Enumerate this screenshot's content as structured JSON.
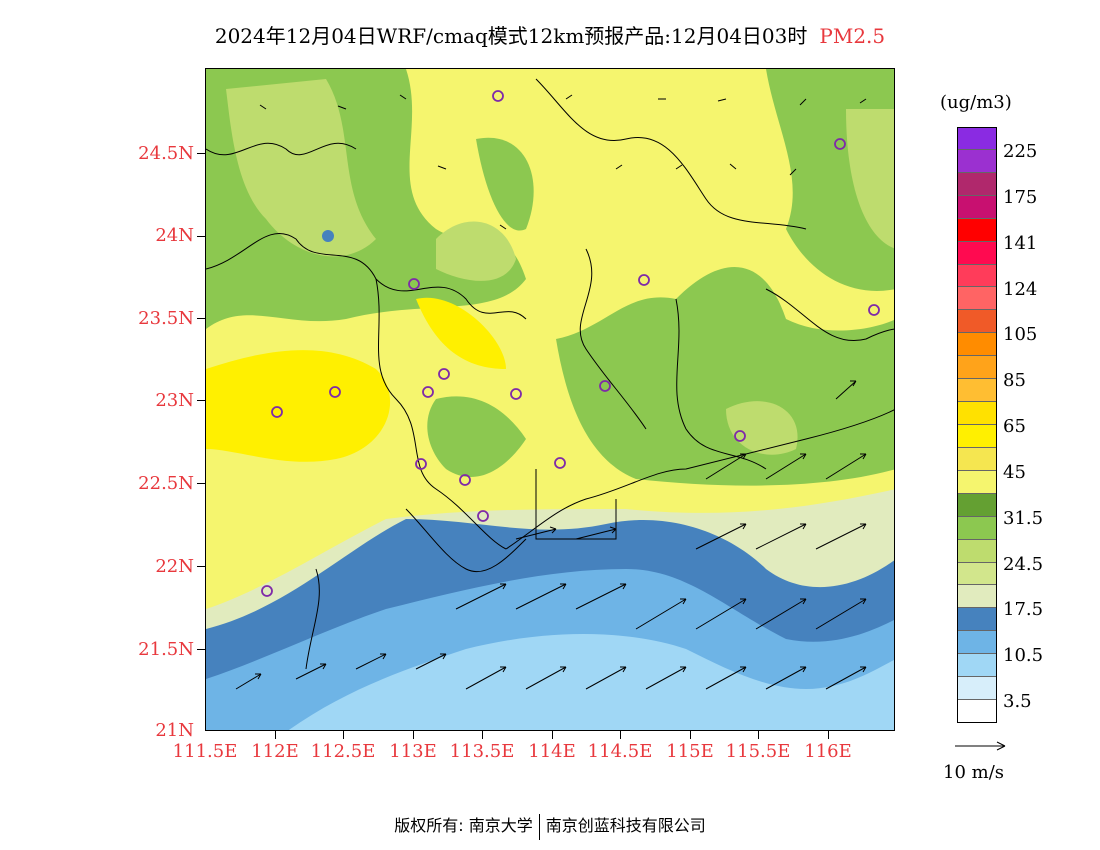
{
  "title": {
    "main": "2024年12月04日WRF/cmaq模式12km预报产品:12月04日03时",
    "species": "PM2.5"
  },
  "axes": {
    "lat_labels": [
      "24.5N",
      "24N",
      "23.5N",
      "23N",
      "22.5N",
      "22N",
      "21.5N",
      "21N"
    ],
    "lon_labels": [
      "111.5E",
      "112E",
      "112.5E",
      "113E",
      "113.5E",
      "114E",
      "114.5E",
      "115E",
      "115.5E",
      "116E"
    ]
  },
  "legend": {
    "unit": "(ug/m3)",
    "labels": [
      "225",
      "175",
      "141",
      "124",
      "105",
      "85",
      "65",
      "45",
      "31.5",
      "24.5",
      "17.5",
      "10.5",
      "3.5"
    ],
    "colors": [
      "#8a2be2",
      "#9b30d0",
      "#b0286c",
      "#c81070",
      "#ff0000",
      "#ff0a50",
      "#ff3c5a",
      "#ff6464",
      "#f05a28",
      "#ff8c00",
      "#ffa31a",
      "#ffbe32",
      "#ffe100",
      "#fff000",
      "#f5e650",
      "#f5f56e",
      "#64a032",
      "#8cc850",
      "#bedc6e",
      "#d2e68c",
      "#e1ebbe",
      "#4682be",
      "#6eb4e6",
      "#a0d7f5",
      "#d7eefa",
      "#ffffff"
    ]
  },
  "wind_reference": {
    "label": "10 m/s"
  },
  "footer": {
    "left": "版权所有: 南京大学",
    "right": "南京创蓝科技有限公司"
  },
  "map_stations": 17
}
